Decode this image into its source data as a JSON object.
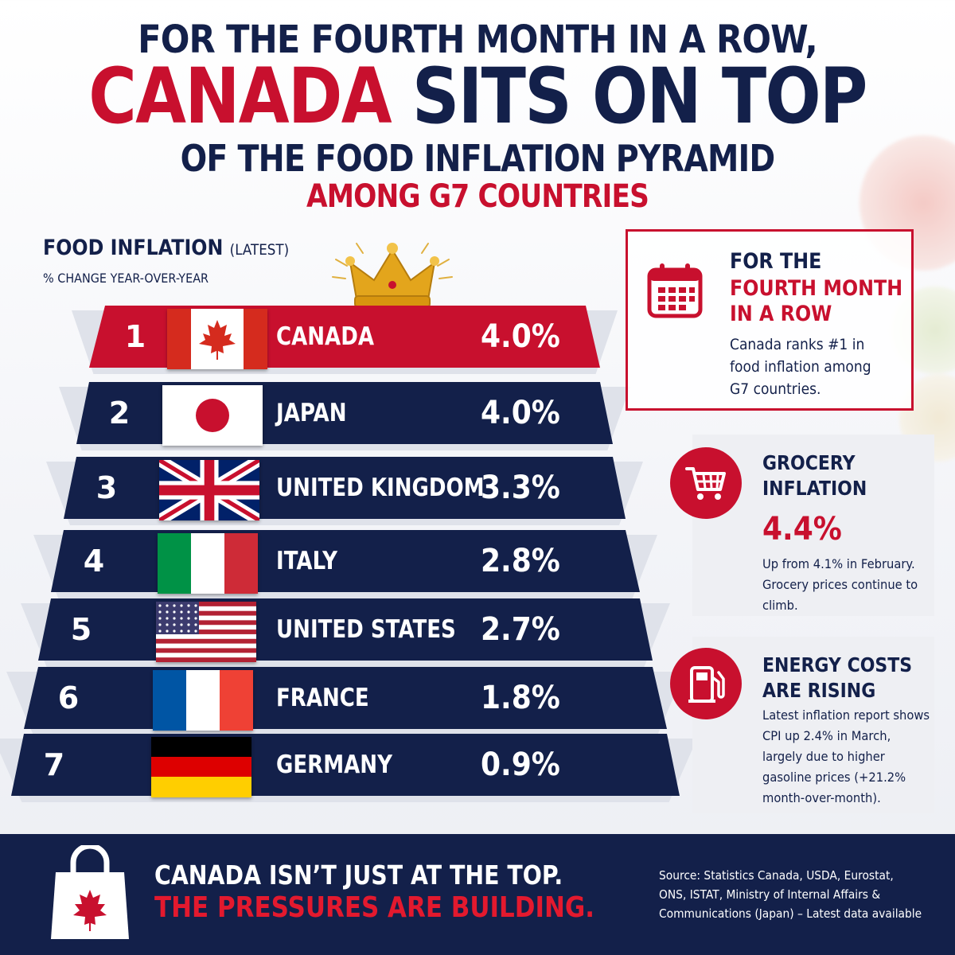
{
  "headline": {
    "line1": "FOR THE FOURTH MONTH IN A ROW,",
    "line2_red": "CANADA",
    "line2_navy": "SITS ON TOP",
    "line3": "OF THE FOOD INFLATION PYRAMID",
    "line4": "AMONG G7 COUNTRIES"
  },
  "chart_data": {
    "type": "bar",
    "title": "FOOD INFLATION",
    "title_suffix": "(LATEST)",
    "ylabel": "% CHANGE YEAR-OVER-YEAR",
    "categories": [
      "CANADA",
      "JAPAN",
      "UNITED KINGDOM",
      "ITALY",
      "UNITED STATES",
      "FRANCE",
      "GERMANY"
    ],
    "ranks": [
      "1",
      "2",
      "3",
      "4",
      "5",
      "6",
      "7"
    ],
    "values": [
      4.0,
      4.0,
      3.3,
      2.8,
      2.7,
      1.8,
      0.9
    ],
    "value_labels": [
      "4.0%",
      "4.0%",
      "3.3%",
      "2.8%",
      "2.7%",
      "1.8%",
      "0.9%"
    ],
    "flags": [
      "canada-flag",
      "japan-flag",
      "uk-flag",
      "italy-flag",
      "usa-flag",
      "france-flag",
      "germany-flag"
    ],
    "colors": {
      "top": "#c8102e",
      "rest": "#13204a"
    }
  },
  "cards": {
    "month": {
      "title": "FOR THE",
      "title_red": [
        "FOURTH MONTH",
        "IN A ROW"
      ],
      "body": "Canada ranks #1 in food inflation among G7 countries.",
      "icon": "calendar-icon"
    },
    "grocery": {
      "title": [
        "GROCERY",
        "INFLATION"
      ],
      "value": "4.4%",
      "body": "Up from 4.1% in February. Grocery prices continue to climb.",
      "icon": "shopping-cart-icon"
    },
    "energy": {
      "title": [
        "ENERGY COSTS",
        "ARE RISING"
      ],
      "body": "Latest inflation report shows CPI up 2.4% in March, largely due to higher gasoline prices (+21.2% month-over-month).",
      "icon": "fuel-pump-icon"
    }
  },
  "footer": {
    "line1": "CANADA ISN’T JUST AT THE TOP.",
    "line2": "THE PRESSURES ARE BUILDING.",
    "source": "Source: Statistics Canada, USDA, Eurostat, ONS, ISTAT, Ministry of Internal Affairs & Communications (Japan) – Latest data available",
    "icon": "shopping-bag-maple-icon"
  },
  "colors": {
    "navy": "#13204a",
    "red": "#c8102e"
  }
}
